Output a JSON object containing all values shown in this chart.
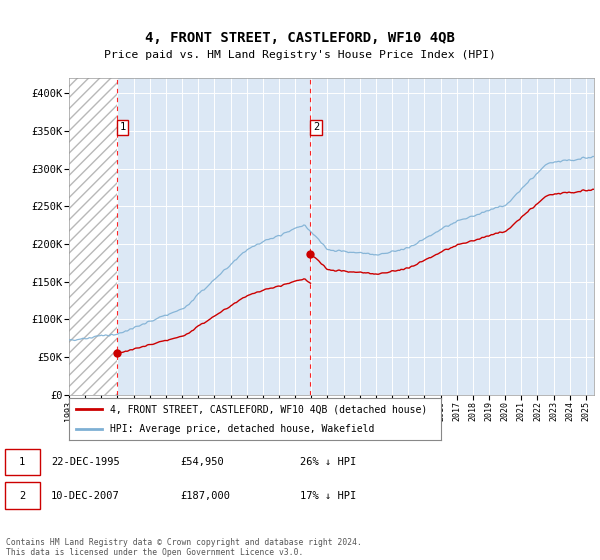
{
  "title": "4, FRONT STREET, CASTLEFORD, WF10 4QB",
  "subtitle": "Price paid vs. HM Land Registry's House Price Index (HPI)",
  "legend_entry1": "4, FRONT STREET, CASTLEFORD, WF10 4QB (detached house)",
  "legend_entry2": "HPI: Average price, detached house, Wakefield",
  "annotation1_date": "22-DEC-1995",
  "annotation1_price": "£54,950",
  "annotation1_hpi": "26% ↓ HPI",
  "annotation2_date": "10-DEC-2007",
  "annotation2_price": "£187,000",
  "annotation2_hpi": "17% ↓ HPI",
  "footer": "Contains HM Land Registry data © Crown copyright and database right 2024.\nThis data is licensed under the Open Government Licence v3.0.",
  "sale1_year": 1995.97,
  "sale1_price": 54950,
  "sale2_year": 2007.94,
  "sale2_price": 187000,
  "red_line_color": "#cc0000",
  "blue_line_color": "#7eb0d4",
  "annotation_box_color": "#cc0000",
  "bg_color": "#dce8f5",
  "hatch_color": "#b8b8b8",
  "ylim_min": 0,
  "ylim_max": 420000,
  "xmin": 1993,
  "xmax": 2025.5
}
